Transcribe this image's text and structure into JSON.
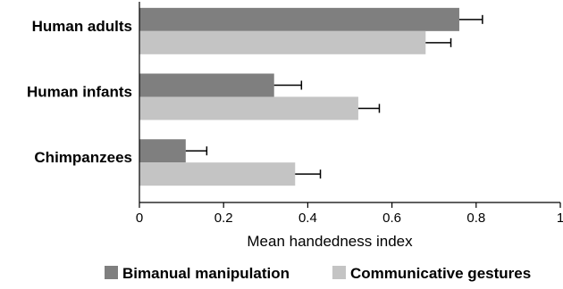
{
  "chart_data": {
    "type": "bar",
    "orientation": "horizontal",
    "categories": [
      "Human adults",
      "Human infants",
      "Chimpanzees"
    ],
    "series": [
      {
        "name": "Bimanual manipulation",
        "values": [
          0.76,
          0.32,
          0.11
        ],
        "errors": [
          0.055,
          0.065,
          0.05
        ],
        "color": "#7f7f7f"
      },
      {
        "name": "Communicative gestures",
        "values": [
          0.68,
          0.52,
          0.37
        ],
        "errors": [
          0.06,
          0.05,
          0.06
        ],
        "color": "#c4c4c4"
      }
    ],
    "xlabel": "Mean handedness  index",
    "ylabel": "",
    "xlim": [
      0,
      1
    ],
    "xticks": [
      0,
      0.2,
      0.4,
      0.6,
      0.8,
      1
    ],
    "xtick_labels": [
      "0",
      "0.2",
      "0.4",
      "0.6",
      "0.8",
      "1"
    ],
    "error_bars": true,
    "grid": false,
    "legend_position": "bottom"
  }
}
